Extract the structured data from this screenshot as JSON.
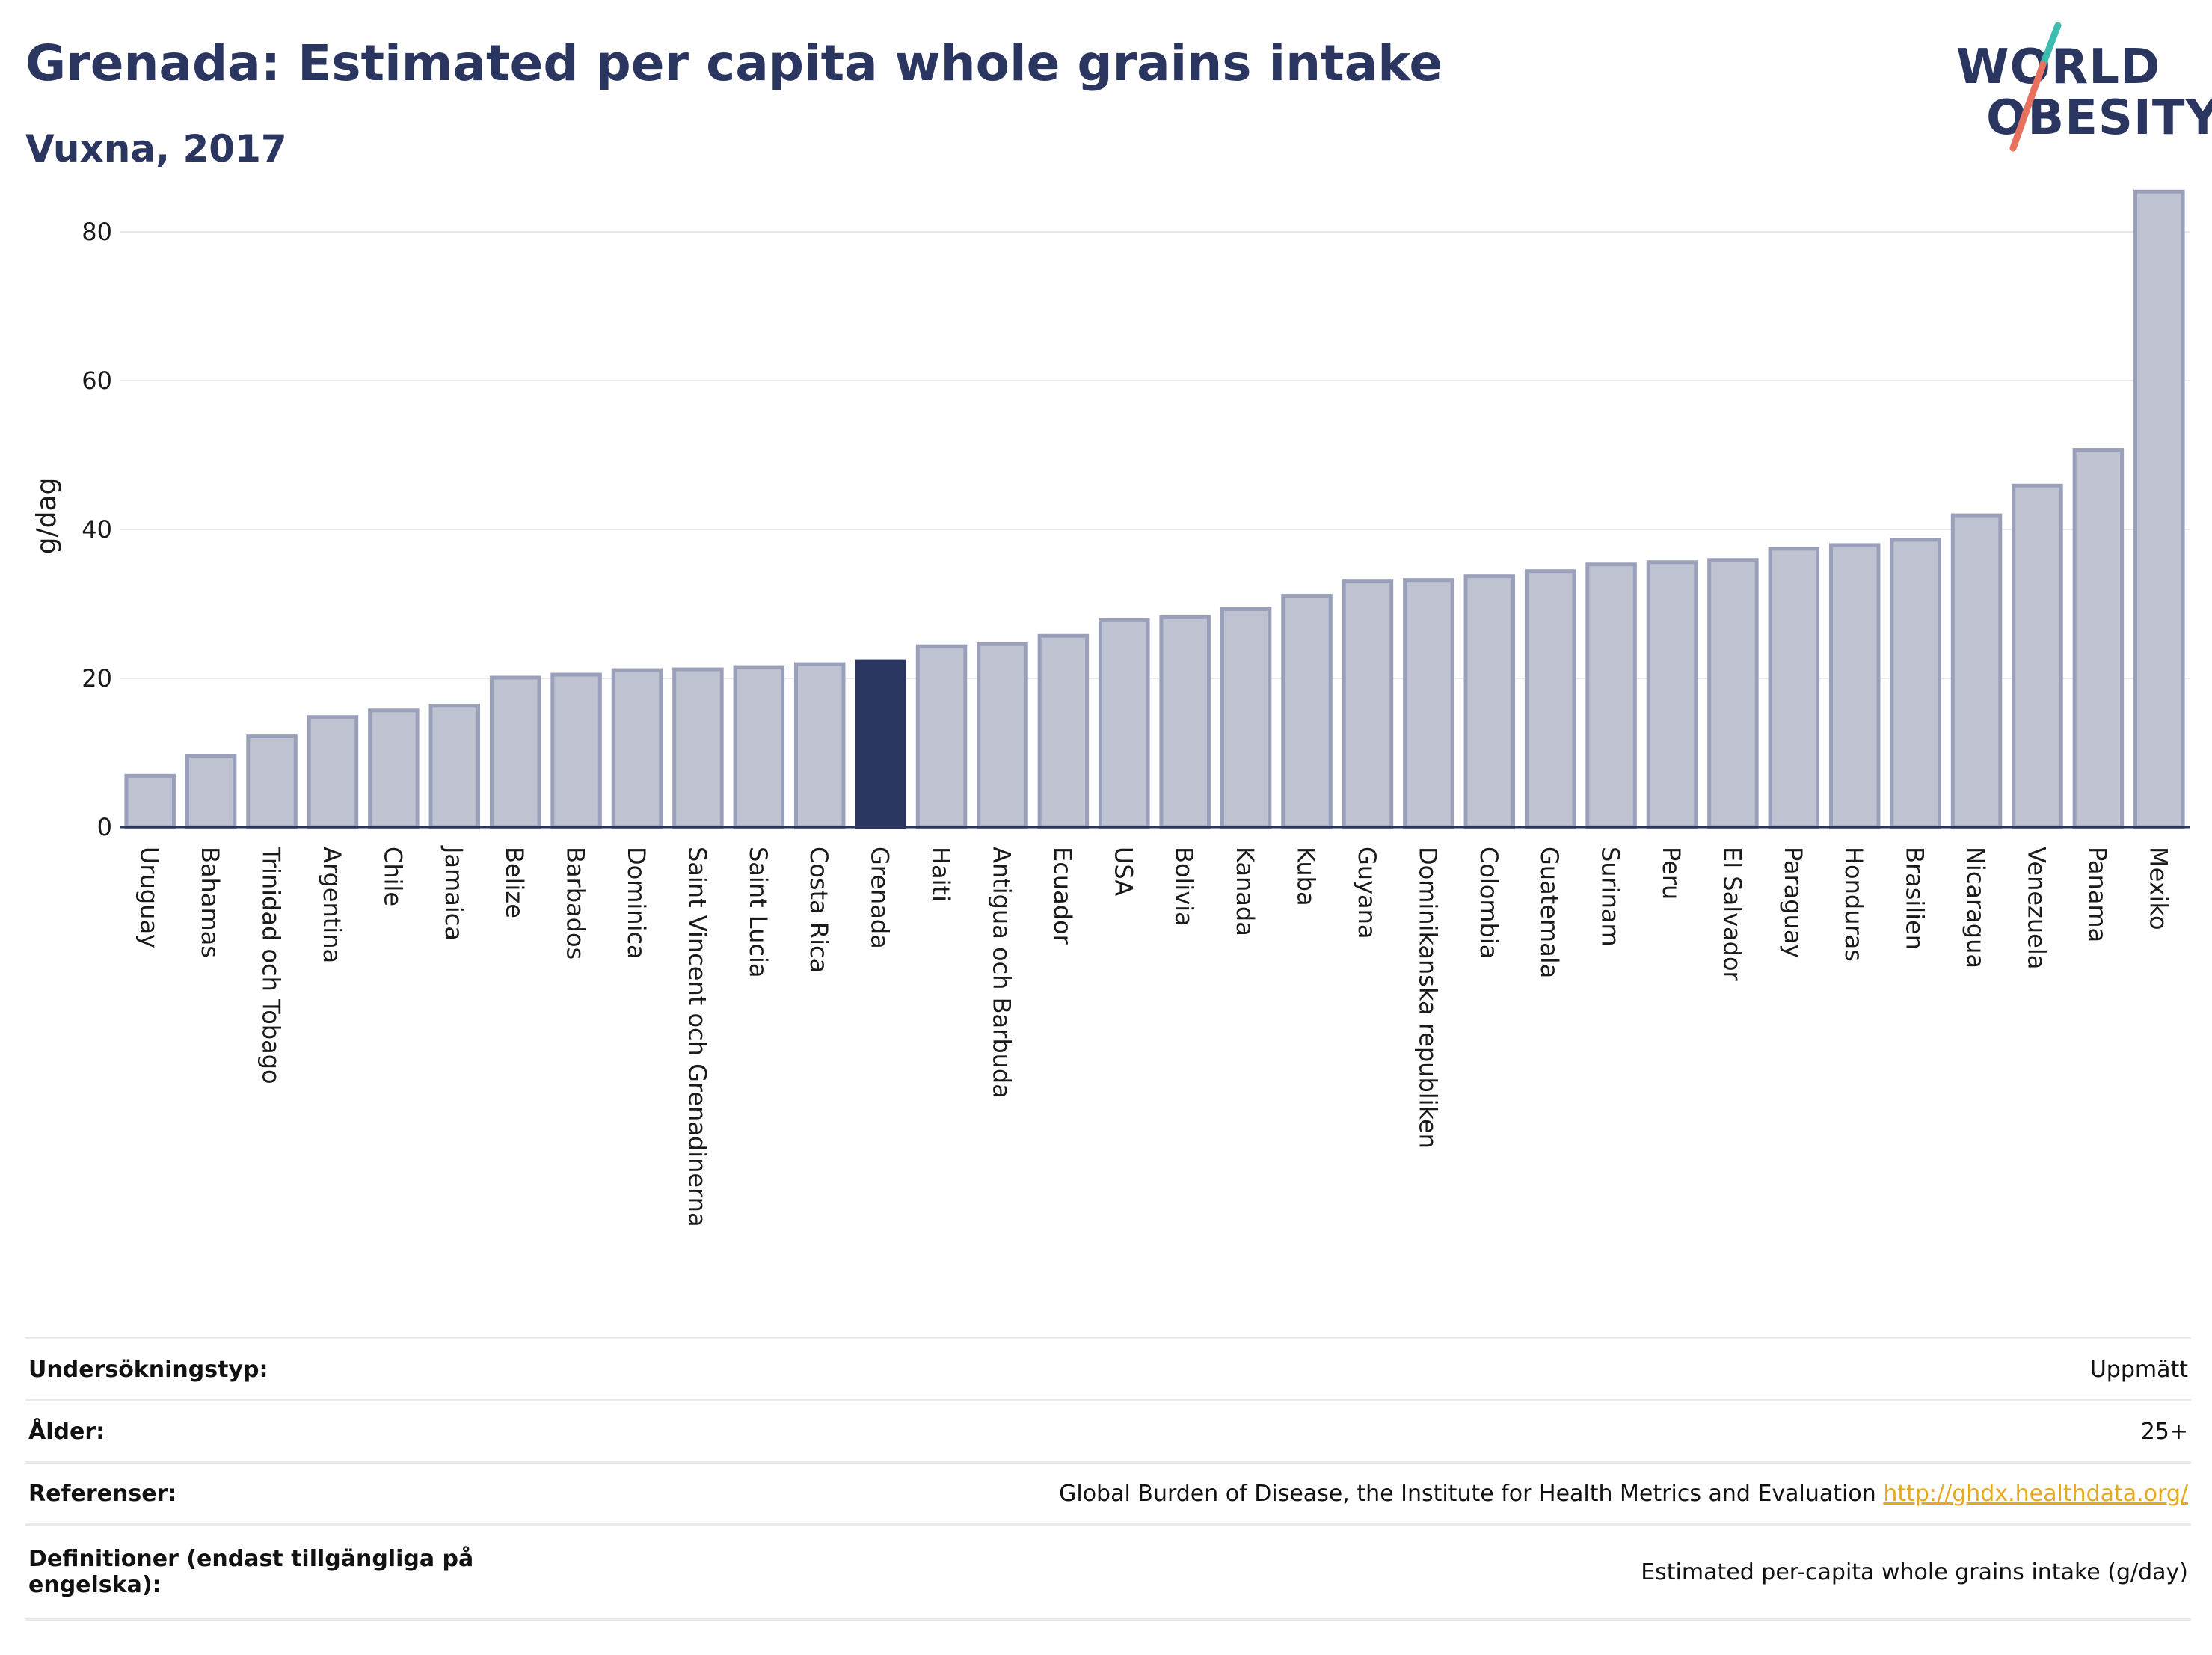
{
  "header": {
    "title": "Grenada: Estimated per capita whole grains intake",
    "subtitle": "Vuxna, 2017"
  },
  "logo": {
    "line1": "WORLD",
    "line2": "OBESITY",
    "colors": {
      "text": "#2a3560",
      "slash_top": "#3bbdb0",
      "slash_bottom": "#e8705e"
    }
  },
  "chart_data": {
    "type": "bar",
    "ylabel": "g/dag",
    "ylim": [
      0,
      88
    ],
    "yticks": [
      0,
      20,
      40,
      60,
      80
    ],
    "grid": true,
    "highlight": "Grenada",
    "colors": {
      "bar": "#bfc3d1",
      "bar_border": "#9aa0ba",
      "highlight": "#2a3560",
      "grid": "#e6e8ee"
    },
    "categories": [
      "Uruguay",
      "Bahamas",
      "Trinidad och Tobago",
      "Argentina",
      "Chile",
      "Jamaica",
      "Belize",
      "Barbados",
      "Dominica",
      "Saint Vincent och Grenadinerna",
      "Saint Lucia",
      "Costa Rica",
      "Grenada",
      "Haiti",
      "Antigua och Barbuda",
      "Ecuador",
      "USA",
      "Bolivia",
      "Kanada",
      "Kuba",
      "Guyana",
      "Dominikanska republiken",
      "Colombia",
      "Guatemala",
      "Surinam",
      "Peru",
      "El Salvador",
      "Paraguay",
      "Honduras",
      "Brasilien",
      "Nicaragua",
      "Venezuela",
      "Panama",
      "Mexiko"
    ],
    "values": [
      6.9,
      9.6,
      12.2,
      14.8,
      15.7,
      16.3,
      20.1,
      20.5,
      21.1,
      21.2,
      21.5,
      21.9,
      22.3,
      24.3,
      24.6,
      25.7,
      27.8,
      28.2,
      29.3,
      31.1,
      33.1,
      33.2,
      33.7,
      34.4,
      35.3,
      35.6,
      35.9,
      37.4,
      37.9,
      38.6,
      41.9,
      45.9,
      50.7,
      85.4
    ]
  },
  "info": {
    "rows": [
      {
        "key": "Undersökningstyp:",
        "value": "Uppmätt"
      },
      {
        "key": "Ålder:",
        "value": "25+"
      },
      {
        "key": "Referenser:",
        "value": "Global Burden of Disease, the Institute for Health Metrics and Evaluation",
        "link": "http://ghdx.healthdata.org/"
      },
      {
        "key": "Definitioner (endast tillgängliga på engelska):",
        "value": "Estimated per-capita whole grains intake (g/day)"
      }
    ]
  }
}
